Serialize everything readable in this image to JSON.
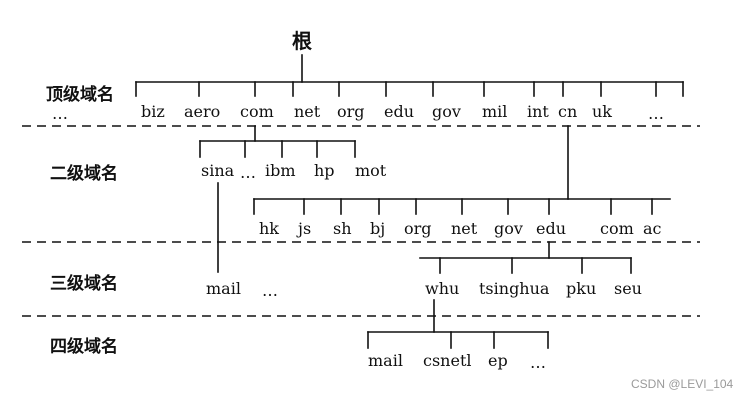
{
  "root": "根",
  "levels": [
    "顶级域名",
    "二级域名",
    "三级域名",
    "四级域名"
  ],
  "top_level": {
    "ellipsis_left": "…",
    "nodes": [
      "biz",
      "aero",
      "com",
      "net",
      "org",
      "edu",
      "gov",
      "mil",
      "int",
      "cn",
      "uk",
      "…"
    ]
  },
  "second_level_com": [
    "sina",
    "…",
    "ibm",
    "hp",
    "mot"
  ],
  "second_level_cn": [
    "hk",
    "js",
    "sh",
    "bj",
    "org",
    "net",
    "gov",
    "edu",
    "com",
    "ac"
  ],
  "third_level": {
    "sina_children": [
      "mail",
      "…"
    ],
    "edu_children": [
      "whu",
      "tsinghua",
      "pku",
      "seu"
    ]
  },
  "fourth_level": [
    "mail",
    "csnetl",
    "ep",
    "…"
  ],
  "watermark": "CSDN @LEVI_104"
}
